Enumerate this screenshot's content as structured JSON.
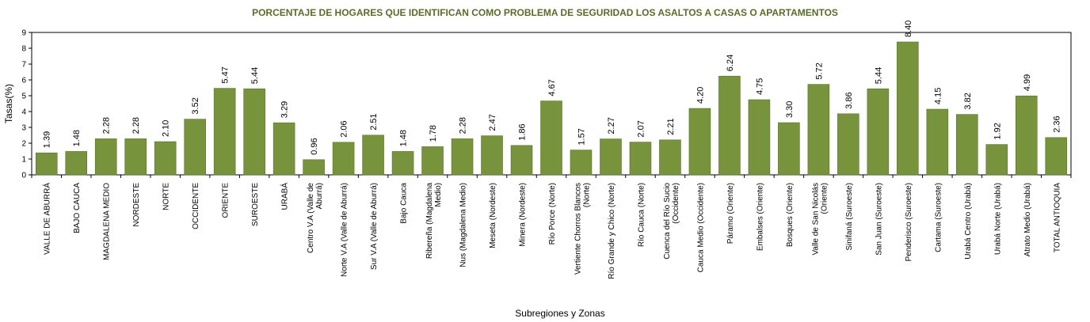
{
  "chart_data": {
    "type": "bar",
    "title": "PORCENTAJE DE HOGARES QUE IDENTIFICAN COMO PROBLEMA DE SEGURIDAD LOS ASALTOS A CASAS O APARTAMENTOS",
    "xlabel": "Subregiones y Zonas",
    "ylabel": "Tasas(%)",
    "ylim": [
      0,
      9
    ],
    "yticks": [
      0,
      1,
      2,
      3,
      4,
      5,
      6,
      7,
      8,
      9
    ],
    "grid": false,
    "bar_color": "#77933c",
    "categories": [
      [
        "VALLE DE ABURRÁ"
      ],
      [
        "BAJO CAUCA"
      ],
      [
        "MAGDALENA MEDIO"
      ],
      [
        "NORDESTE"
      ],
      [
        "NORTE"
      ],
      [
        "OCCIDENTE"
      ],
      [
        "ORIENTE"
      ],
      [
        "SUROESTE"
      ],
      [
        "URABÁ"
      ],
      [
        "Centro V.A (Valle de",
        "Aburrá)"
      ],
      [
        "Norte V.A (Valle de Aburrá)"
      ],
      [
        "Sur V.A (Valle de Aburrá)"
      ],
      [
        "Bajo Cauca"
      ],
      [
        "Ribereña  (Magdalena",
        "Medio)"
      ],
      [
        "Nus  (Magdalena Medio)"
      ],
      [
        "Meseta  (Nordeste)"
      ],
      [
        "Minera  (Nordeste)"
      ],
      [
        "Río Porce   (Norte)"
      ],
      [
        "Vertiente Chorros Blancos",
        "(Norte)"
      ],
      [
        "Río Grande y Chico  (Norte)"
      ],
      [
        "Río Cauca  (Norte)"
      ],
      [
        "Cuenca del Río Sucio",
        "(Occidente)"
      ],
      [
        "Cauca Medio  (Occidente)"
      ],
      [
        "Páramo  (Oriente)"
      ],
      [
        "Embalses (Oriente)"
      ],
      [
        "Bosques  (Oriente)"
      ],
      [
        "Valle de San Nicolás",
        "(Oriente)"
      ],
      [
        "Sinifaná  (Suroeste)"
      ],
      [
        "San Juan  (Suroeste)"
      ],
      [
        "Penderisco (Suroeste)"
      ],
      [
        "Cartama  (Suroeste)"
      ],
      [
        "Urabá Centro  (Urabá)"
      ],
      [
        "Urabá Norte  (Urabá)"
      ],
      [
        "Atrato Medio  (Urabá)"
      ],
      [
        "TOTAL ANTIOQUIA"
      ]
    ],
    "values": [
      1.39,
      1.48,
      2.28,
      2.28,
      2.1,
      3.52,
      5.47,
      5.44,
      3.29,
      0.96,
      2.06,
      2.51,
      1.48,
      1.78,
      2.28,
      2.47,
      1.86,
      4.67,
      1.57,
      2.27,
      2.07,
      2.21,
      4.2,
      6.24,
      4.75,
      3.3,
      5.72,
      3.86,
      5.44,
      8.4,
      4.15,
      3.82,
      1.92,
      4.99,
      2.36
    ],
    "value_labels": [
      "1.39",
      "1.48",
      "2.28",
      "2.28",
      "2.10",
      "3.52",
      "5.47",
      "5.44",
      "3.29",
      "0.96",
      "2.06",
      "2.51",
      "1.48",
      "1.78",
      "2.28",
      "2.47",
      "1.86",
      "4.67",
      "1.57",
      "2.27",
      "2.07",
      "2.21",
      "4.20",
      "6.24",
      "4.75",
      "3.30",
      "5.72",
      "3.86",
      "5.44",
      "8.40",
      "4.15",
      "3.82",
      "1.92",
      "4.99",
      "2.36"
    ]
  }
}
